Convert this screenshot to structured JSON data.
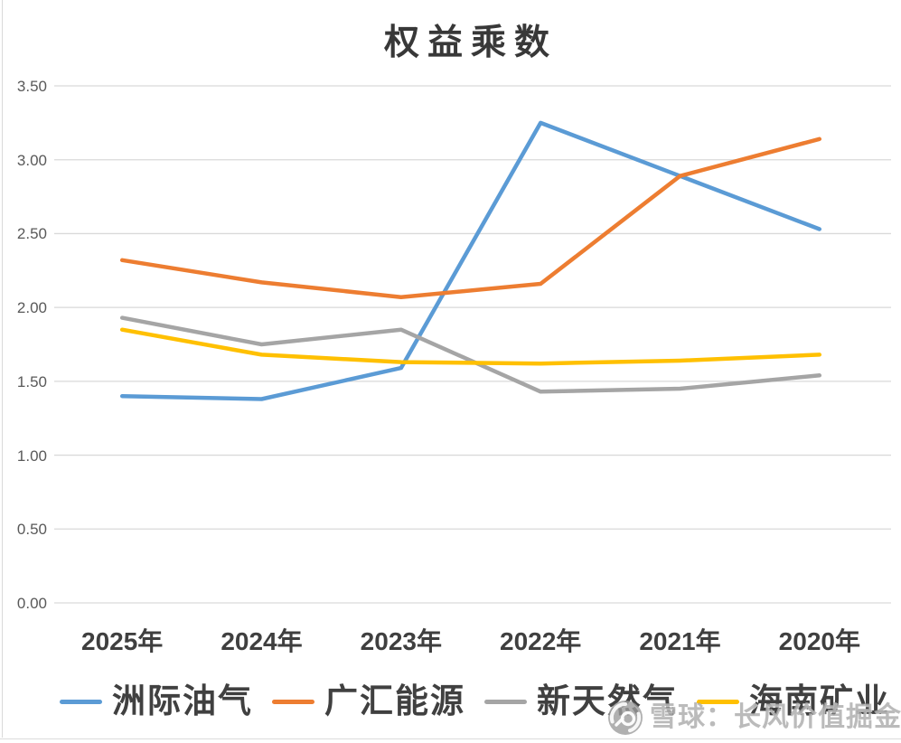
{
  "title": "权益乘数",
  "watermark": {
    "text": "雪球：长风价值掘金",
    "logo": "xueqiu-snowball-logo"
  },
  "chart_data": {
    "type": "line",
    "title": "权益乘数",
    "categories": [
      "2025年",
      "2024年",
      "2023年",
      "2022年",
      "2021年",
      "2020年"
    ],
    "series": [
      {
        "name": "洲际油气",
        "color": "#5B9BD5",
        "values": [
          1.4,
          1.38,
          1.59,
          3.25,
          2.89,
          2.53
        ]
      },
      {
        "name": "广汇能源",
        "color": "#ED7D31",
        "values": [
          2.32,
          2.17,
          2.07,
          2.16,
          2.89,
          3.14
        ]
      },
      {
        "name": "新天然气",
        "color": "#A5A5A5",
        "values": [
          1.93,
          1.75,
          1.85,
          1.43,
          1.45,
          1.54
        ]
      },
      {
        "name": "海南矿业",
        "color": "#FFC000",
        "values": [
          1.85,
          1.68,
          1.63,
          1.62,
          1.64,
          1.68
        ]
      }
    ],
    "yticks": [
      "3.50",
      "3.00",
      "2.50",
      "2.00",
      "1.50",
      "1.00",
      "0.50",
      "0.00"
    ],
    "ylim": [
      0,
      3.5
    ],
    "grid": true,
    "gridline_color": "#D9D9D9",
    "axis_label_color": "#595959",
    "legend_position": "bottom"
  }
}
